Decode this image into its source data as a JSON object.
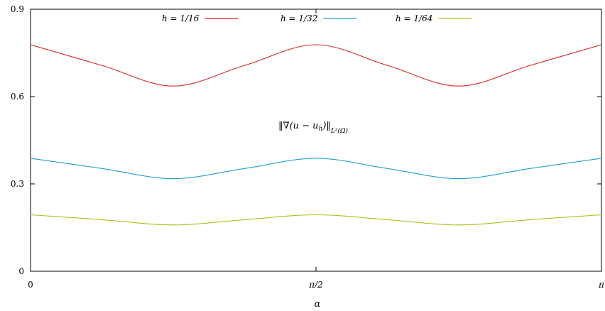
{
  "chart_data": {
    "type": "line",
    "xlabel": "α",
    "ylabel": "",
    "xlim": [
      0,
      3.14159
    ],
    "ylim": [
      0,
      0.9
    ],
    "x_ticks": [
      {
        "value": 0,
        "label": "0"
      },
      {
        "value": 1.5708,
        "label": "π/2"
      },
      {
        "value": 3.14159,
        "label": "π"
      }
    ],
    "y_ticks": [
      {
        "value": 0,
        "label": "0"
      },
      {
        "value": 0.3,
        "label": "0.3"
      },
      {
        "value": 0.6,
        "label": "0.6"
      },
      {
        "value": 0.9,
        "label": "0.9"
      }
    ],
    "grid": false,
    "legend_position": "top",
    "annotation": "‖∇(u − u_h)‖_{L²(Ω)}",
    "annotation_parts": {
      "main": "‖∇(u − u",
      "sub_h": "h",
      "close": ")‖",
      "sub": "L²(Ω)"
    },
    "series": [
      {
        "name": "h = 1/16",
        "color": "#d62728",
        "x": [
          0,
          0.3927,
          0.7854,
          1.1781,
          1.5708,
          1.9635,
          2.3562,
          2.7489,
          3.14159
        ],
        "y": [
          0.778,
          0.707,
          0.636,
          0.707,
          0.778,
          0.707,
          0.636,
          0.707,
          0.778
        ]
      },
      {
        "name": "h = 1/32",
        "color": "#1f9fd4",
        "x": [
          0,
          0.3927,
          0.7854,
          1.1781,
          1.5708,
          1.9635,
          2.3562,
          2.7489,
          3.14159
        ],
        "y": [
          0.388,
          0.353,
          0.318,
          0.353,
          0.388,
          0.353,
          0.318,
          0.353,
          0.388
        ]
      },
      {
        "name": "h = 1/64",
        "color": "#a8c21a",
        "x": [
          0,
          0.3927,
          0.7854,
          1.1781,
          1.5708,
          1.9635,
          2.3562,
          2.7489,
          3.14159
        ],
        "y": [
          0.194,
          0.177,
          0.159,
          0.177,
          0.194,
          0.177,
          0.159,
          0.177,
          0.194
        ]
      }
    ]
  }
}
